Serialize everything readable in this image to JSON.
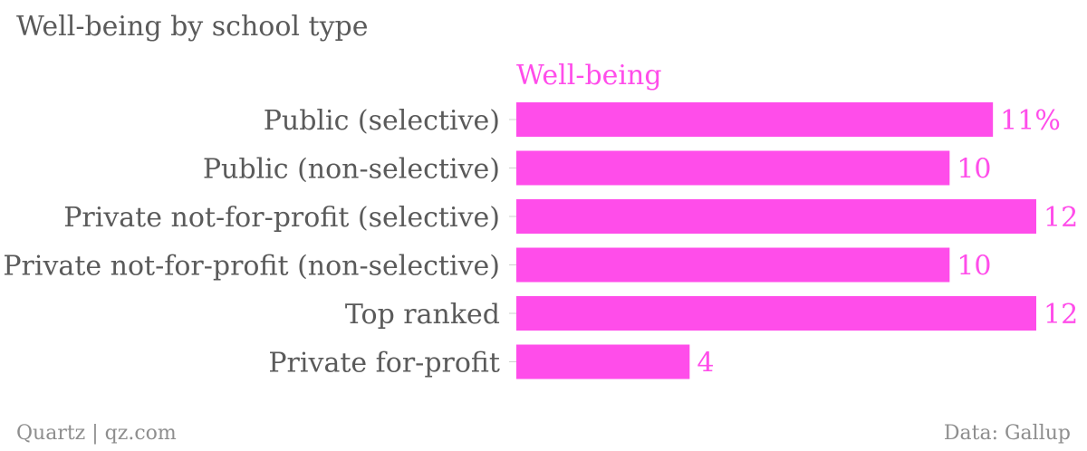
{
  "title": "Well-being by school type",
  "footer": {
    "source_left": "Quartz | qz.com",
    "source_right": "Data: Gallup"
  },
  "colors": {
    "bar": "#ff4dea",
    "text": "#5a5a5a",
    "footer": "#8e8e8e"
  },
  "chart_data": {
    "type": "bar",
    "orientation": "horizontal",
    "title": "Well-being by school type",
    "categories": [
      "Public (selective)",
      "Public (non-selective)",
      "Private not-for-profit (selective)",
      "Private not-for-profit (non-selective)",
      "Top ranked",
      "Private for-profit"
    ],
    "series": [
      {
        "name": "Well-being",
        "values": [
          11,
          10,
          12,
          10,
          12,
          4
        ],
        "labels": [
          "11%",
          "10",
          "12",
          "10",
          "12",
          "4"
        ]
      }
    ],
    "xlim": [
      0,
      12
    ],
    "grid": false,
    "legend": "top"
  }
}
